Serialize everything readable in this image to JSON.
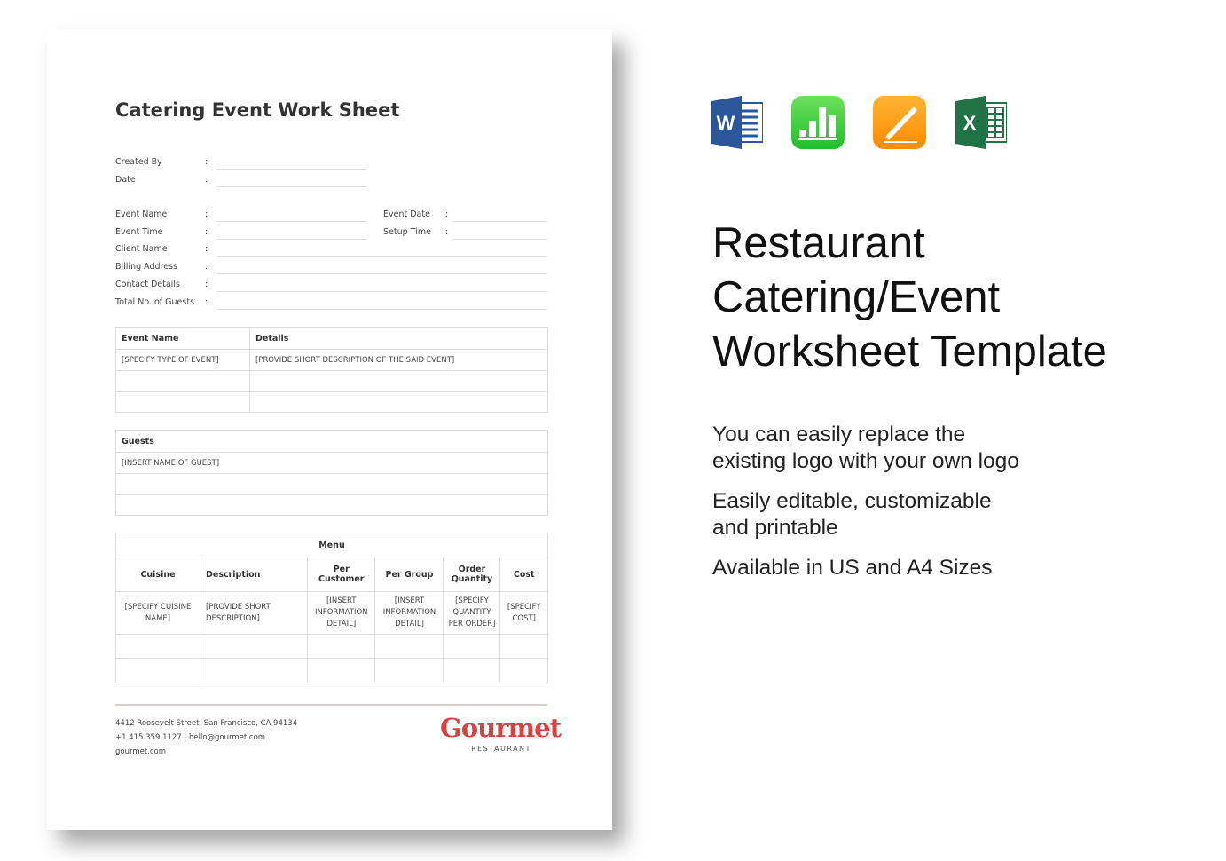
{
  "document": {
    "title": "Catering Event Work Sheet",
    "fields": {
      "created_by": "Created By",
      "date": "Date",
      "event_name": "Event Name",
      "event_time": "Event Time",
      "client_name": "Client Name",
      "billing_address": "Billing Address",
      "contact_details": "Contact Details",
      "total_guests": "Total No. of Guests",
      "event_date": "Event Date",
      "setup_time": "Setup Time",
      "colon": ":"
    },
    "event_table": {
      "headers": [
        "Event Name",
        "Details"
      ],
      "row": [
        "[SPECIFY TYPE OF EVENT]",
        "[PROVIDE SHORT DESCRIPTION OF THE SAID EVENT]"
      ]
    },
    "guests_table": {
      "header": "Guests",
      "row": "[INSERT NAME OF GUEST]"
    },
    "menu_table": {
      "title": "Menu",
      "headers": [
        "Cuisine",
        "Description",
        "Per Customer",
        "Per Group",
        "Order Quantity",
        "Cost"
      ],
      "row": [
        "[SPECIFY CUISINE NAME]",
        "[PROVIDE SHORT DESCRIPTION]",
        "[INSERT INFORMATION DETAIL]",
        "[INSERT INFORMATION DETAIL]",
        "[SPECIFY QUANTITY PER ORDER]",
        "[SPECIFY COST]"
      ]
    },
    "footer": {
      "address": "4412 Roosevelt Street, San Francisco, CA 94134",
      "contact": "+1 415 359 1127 | hello@gourmet.com",
      "website": "gourmet.com",
      "logo_name": "Gourmet",
      "logo_sub": "RESTAURANT",
      "logo_color": "#d9413f"
    }
  },
  "apps": [
    "word-icon",
    "numbers-icon",
    "pages-icon",
    "excel-icon"
  ],
  "heading": [
    "Restaurant",
    "Catering/Event",
    "Worksheet Template"
  ],
  "features": [
    [
      "You can easily replace the",
      "existing logo with your own logo"
    ],
    [
      "Easily editable, customizable",
      "and printable"
    ],
    [
      "Available in US and A4 Sizes"
    ]
  ]
}
